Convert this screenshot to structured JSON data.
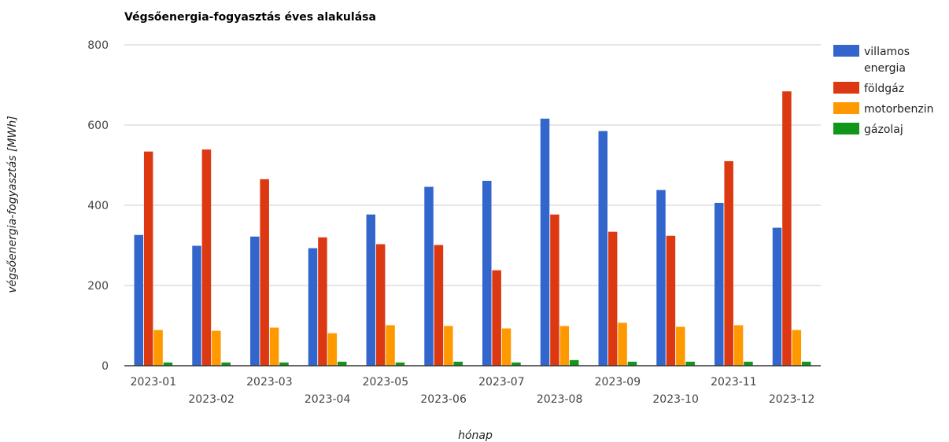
{
  "chart_data": {
    "type": "bar",
    "title": "Végsőenergia-fogyasztás éves alakulása",
    "xlabel": "hónap",
    "ylabel": "végsőenergia-fogyasztás [MWh]",
    "ylim": [
      0,
      800
    ],
    "yticks": [
      "0",
      "200",
      "400",
      "600",
      "800"
    ],
    "grid": true,
    "legend_position": "right",
    "categories": [
      "2023-01",
      "2023-02",
      "2023-03",
      "2023-04",
      "2023-05",
      "2023-06",
      "2023-07",
      "2023-08",
      "2023-09",
      "2023-10",
      "2023-11",
      "2023-12"
    ],
    "series": [
      {
        "name": "villamos energia",
        "legend_lines": [
          "villamos",
          "energia"
        ],
        "color": "#3366cc",
        "values": [
          326,
          299,
          322,
          293,
          377,
          446,
          461,
          616,
          585,
          438,
          406,
          344
        ]
      },
      {
        "name": "földgáz",
        "legend_lines": [
          "földgáz"
        ],
        "color": "#dc3912",
        "values": [
          534,
          539,
          465,
          320,
          303,
          301,
          238,
          377,
          334,
          324,
          510,
          684
        ]
      },
      {
        "name": "motorbenzin",
        "legend_lines": [
          "motorbenzin"
        ],
        "color": "#ff9900",
        "values": [
          89,
          87,
          95,
          81,
          101,
          99,
          93,
          99,
          107,
          97,
          101,
          89
        ]
      },
      {
        "name": "gázolaj",
        "legend_lines": [
          "gázolaj"
        ],
        "color": "#109618",
        "values": [
          8,
          8,
          8,
          10,
          8,
          10,
          8,
          14,
          10,
          10,
          10,
          10
        ]
      }
    ]
  }
}
